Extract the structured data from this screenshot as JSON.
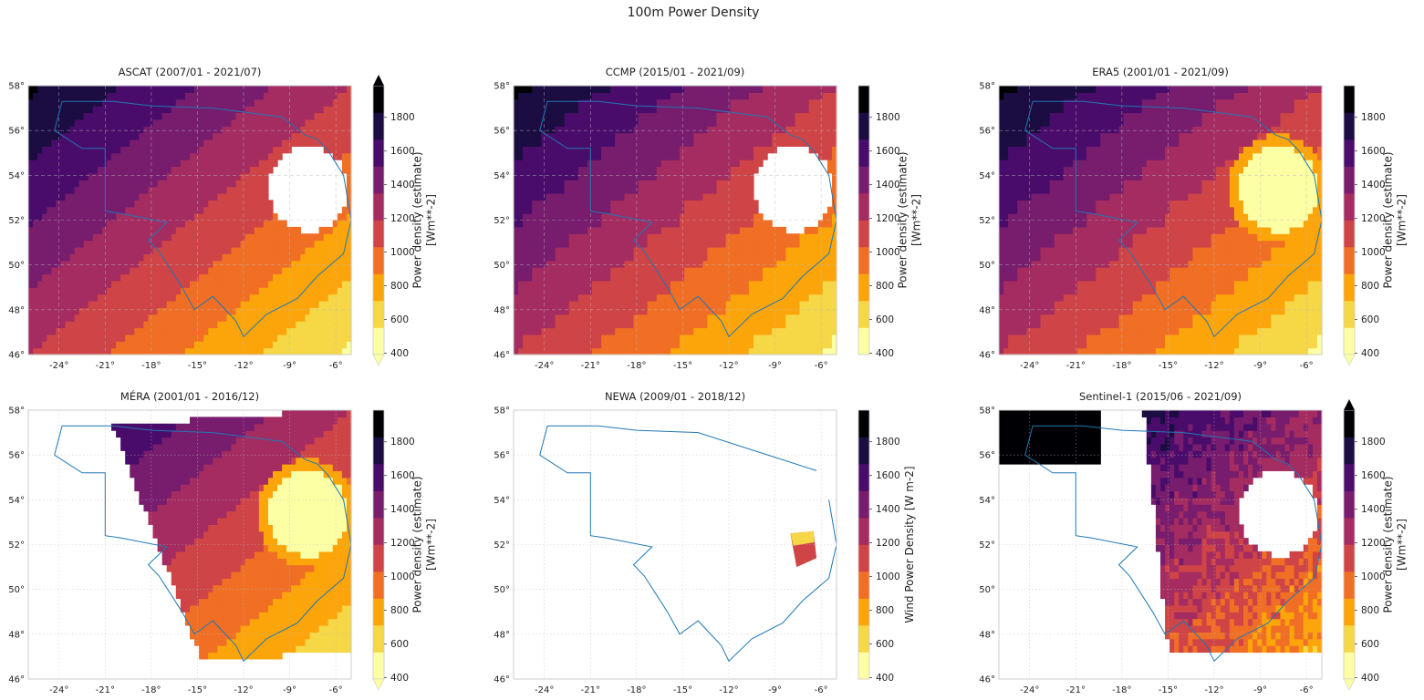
{
  "figure": {
    "title": "100m Power Density"
  },
  "colors": {
    "levels": [
      "#fcffa4",
      "#f6d746",
      "#fca50a",
      "#f06f25",
      "#cf4446",
      "#a42c60",
      "#781c6d",
      "#4a0c6b",
      "#1b0c41",
      "#000004"
    ],
    "frame": "#cccccc",
    "grid": "#bbbbbb",
    "outline": "#1f77b4",
    "nodata": "#ffffff"
  },
  "chart_data": [
    {
      "type": "heatmap",
      "title": "ASCAT (2007/01 - 2021/07)",
      "colorbar": {
        "label": "Power density (estimate)\n[Wm**-2]",
        "ticks": [
          "400",
          "600",
          "800",
          "1000",
          "1200",
          "1400",
          "1600",
          "1800"
        ],
        "extend": "both"
      },
      "grid_style": "dashed",
      "field": "smooth",
      "coverage": "full",
      "coastal_blank": true,
      "coastal_bright": false,
      "xlim": [
        -26,
        -5
      ],
      "ylim": [
        46,
        58
      ],
      "xticks": [
        "-24°",
        "-21°",
        "-18°",
        "-15°",
        "-12°",
        "-9°",
        "-6°"
      ],
      "yticks": [
        "46°",
        "48°",
        "50°",
        "52°",
        "54°",
        "56°",
        "58°"
      ]
    },
    {
      "type": "heatmap",
      "title": "CCMP (2015/01 - 2021/09)",
      "colorbar": {
        "label": "Power density (estimate)\n[Wm**-2]",
        "ticks": [
          "400",
          "600",
          "800",
          "1000",
          "1200",
          "1400",
          "1600",
          "1800"
        ],
        "extend": "none"
      },
      "grid_style": "dashed",
      "field": "blocky",
      "coverage": "full",
      "coastal_blank": true,
      "coastal_bright": false,
      "xlim": [
        -26,
        -5
      ],
      "ylim": [
        46,
        58
      ],
      "xticks": [
        "-24°",
        "-21°",
        "-18°",
        "-15°",
        "-12°",
        "-9°",
        "-6°"
      ],
      "yticks": [
        "46°",
        "48°",
        "50°",
        "52°",
        "54°",
        "56°",
        "58°"
      ]
    },
    {
      "type": "heatmap",
      "title": "ERA5 (2001/01 - 2021/09)",
      "colorbar": {
        "label": "Power density (estimate)\n[Wm**-2]",
        "ticks": [
          "400",
          "600",
          "800",
          "1000",
          "1200",
          "1400",
          "1600",
          "1800"
        ],
        "extend": "min"
      },
      "grid_style": "dashed",
      "field": "blocky",
      "coverage": "full",
      "coastal_blank": false,
      "coastal_bright": true,
      "xlim": [
        -26,
        -5
      ],
      "ylim": [
        46,
        58
      ],
      "xticks": [
        "-24°",
        "-21°",
        "-18°",
        "-15°",
        "-12°",
        "-9°",
        "-6°"
      ],
      "yticks": [
        "46°",
        "48°",
        "50°",
        "52°",
        "54°",
        "56°",
        "58°"
      ]
    },
    {
      "type": "heatmap",
      "title": "MÉRA (2001/01 - 2016/12)",
      "colorbar": {
        "label": "Power density (estimate)\n[Wm**-2]",
        "ticks": [
          "400",
          "600",
          "800",
          "1000",
          "1200",
          "1400",
          "1600",
          "1800"
        ],
        "extend": "min"
      },
      "grid_style": "dotted",
      "field": "smooth",
      "coverage": "mera",
      "coastal_blank": false,
      "coastal_bright": true,
      "xlim": [
        -26,
        -5
      ],
      "ylim": [
        46,
        58
      ],
      "xticks": [
        "-24°",
        "-21°",
        "-18°",
        "-15°",
        "-12°",
        "-9°",
        "-6°"
      ],
      "yticks": [
        "46°",
        "48°",
        "50°",
        "52°",
        "54°",
        "56°",
        "58°"
      ]
    },
    {
      "type": "heatmap",
      "title": "NEWA (2009/01 - 2018/12)",
      "colorbar": {
        "label": "Wind Power Density [W m-2]",
        "ticks": [
          "400",
          "600",
          "800",
          "1000",
          "1200",
          "1400",
          "1600",
          "1800"
        ],
        "extend": "none"
      },
      "grid_style": "dotted",
      "field": "smooth",
      "coverage": "newa",
      "coastal_blank": false,
      "coastal_bright": false,
      "xlim": [
        -26,
        -5
      ],
      "ylim": [
        46,
        58
      ],
      "xticks": [
        "-24°",
        "-21°",
        "-18°",
        "-15°",
        "-12°",
        "-9°",
        "-6°"
      ],
      "yticks": [
        "46°",
        "48°",
        "50°",
        "52°",
        "54°",
        "56°",
        "58°"
      ]
    },
    {
      "type": "heatmap",
      "title": "Sentinel-1 (2015/06 - 2021/09)",
      "colorbar": {
        "label": "Power density (estimate)\n[Wm**-2]",
        "ticks": [
          "400",
          "600",
          "800",
          "1000",
          "1200",
          "1400",
          "1600",
          "1800"
        ],
        "extend": "both"
      },
      "grid_style": "dotted",
      "field": "noisy",
      "coverage": "sentinel",
      "coastal_blank": true,
      "coastal_bright": false,
      "xlim": [
        -26,
        -5
      ],
      "ylim": [
        46,
        58
      ],
      "xticks": [
        "-24°",
        "-21°",
        "-18°",
        "-15°",
        "-12°",
        "-9°",
        "-6°"
      ],
      "yticks": [
        "46°",
        "48°",
        "50°",
        "52°",
        "54°",
        "56°",
        "58°"
      ]
    }
  ]
}
